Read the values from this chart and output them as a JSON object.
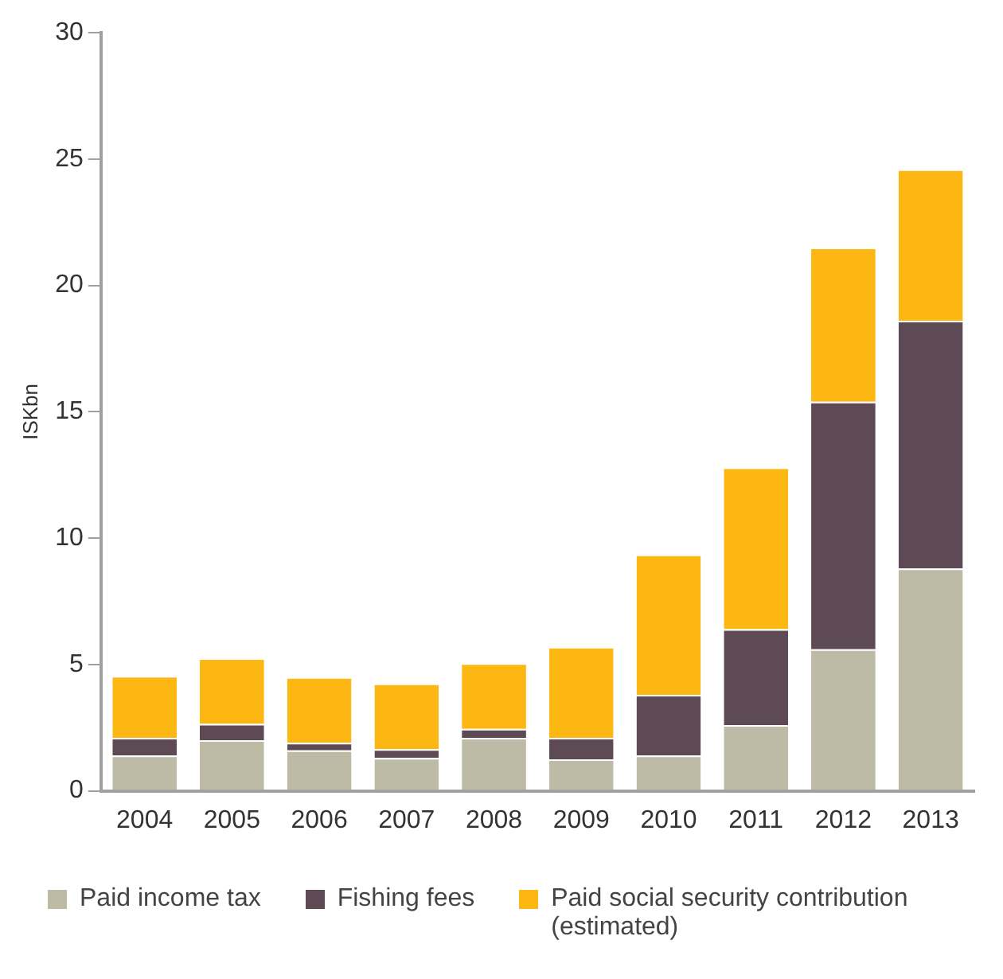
{
  "chart_data": {
    "type": "bar",
    "stacked": true,
    "ylabel": "ISKbn",
    "categories": [
      "2004",
      "2005",
      "2006",
      "2007",
      "2008",
      "2009",
      "2010",
      "2011",
      "2012",
      "2013"
    ],
    "series": [
      {
        "name": "Paid income tax",
        "color": "#bdbba6",
        "values": [
          1.4,
          2.0,
          1.6,
          1.3,
          2.1,
          1.25,
          1.4,
          2.6,
          5.6,
          8.8
        ]
      },
      {
        "name": "Fishing fees",
        "color": "#5e4a55",
        "values": [
          0.7,
          0.65,
          0.3,
          0.35,
          0.35,
          0.85,
          2.4,
          3.8,
          9.8,
          9.8
        ]
      },
      {
        "name": "Paid social security contribution (estimated)",
        "color": "#fdb713",
        "values": [
          2.45,
          2.6,
          2.6,
          2.6,
          2.6,
          3.6,
          5.55,
          6.4,
          6.1,
          6.0
        ]
      }
    ],
    "ylim": [
      0,
      30
    ],
    "yticks": [
      0,
      5,
      10,
      15,
      20,
      25,
      30
    ],
    "grid": false,
    "legend": "bottom"
  }
}
